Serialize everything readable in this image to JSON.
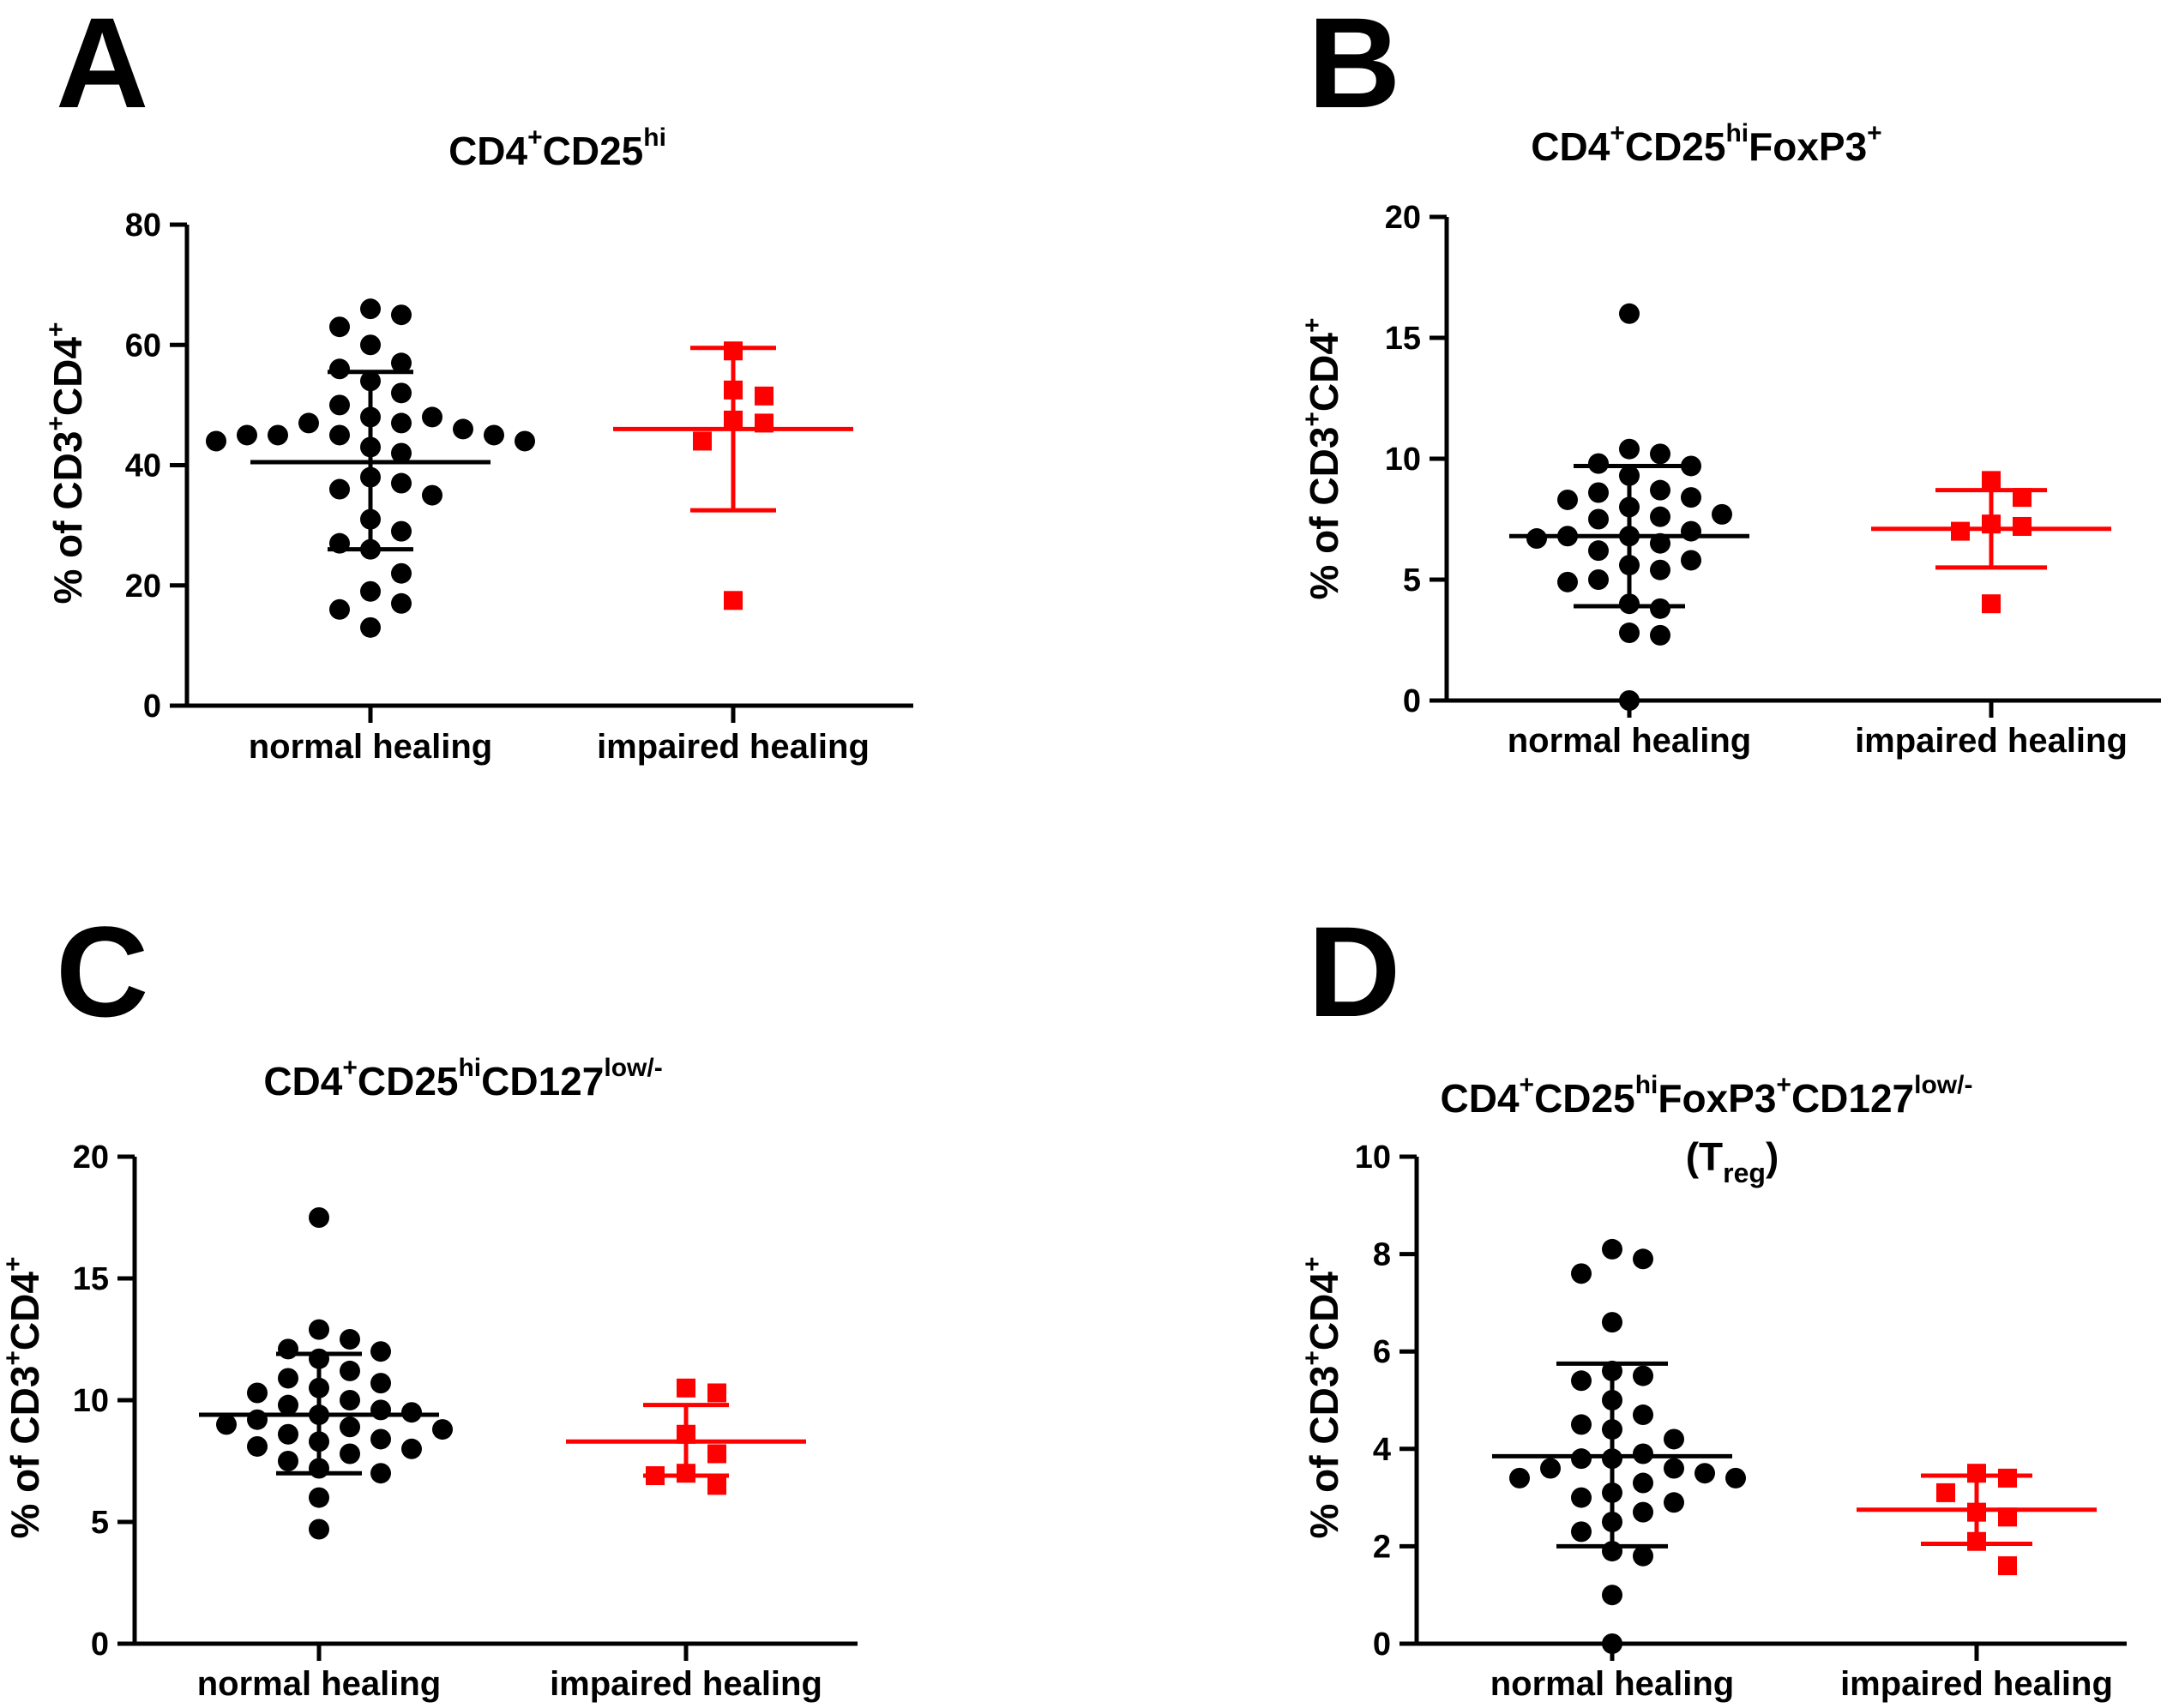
{
  "figure": {
    "colors": {
      "normal": "#000000",
      "impaired": "#ff0000"
    },
    "legend_names": {
      "normal": "normal healing",
      "impaired": "impaired healing"
    }
  },
  "chart_data": [
    {
      "panel": "A",
      "type": "scatter",
      "title": {
        "base": "CD4",
        "sup1": "+",
        "mid": "CD25",
        "sup2": "hi"
      },
      "ylabel": {
        "p1": "% of CD3",
        "s1": "+",
        "p2": "CD4",
        "s2": "+"
      },
      "categories": [
        "normal healing",
        "impaired healing"
      ],
      "ylim": [
        0,
        80
      ],
      "yticks": [
        0,
        20,
        40,
        60,
        80
      ],
      "series": [
        {
          "name": "normal healing",
          "color": "#000000",
          "marker": "circle",
          "mean": 40.5,
          "sd_low": 26,
          "sd_high": 55.5,
          "values": [
            66,
            65,
            63,
            60,
            57,
            56,
            54,
            52,
            50,
            48,
            48,
            47,
            47,
            46,
            45,
            45,
            45,
            45,
            44,
            44,
            43,
            42,
            38,
            37,
            36,
            35,
            31,
            29,
            27,
            26,
            22,
            19,
            17,
            16,
            13
          ]
        },
        {
          "name": "impaired healing",
          "color": "#ff0000",
          "marker": "square",
          "mean": 46,
          "sd_low": 32.5,
          "sd_high": 59.5,
          "values": [
            59,
            52.5,
            51.5,
            47.5,
            47,
            44,
            17.5
          ]
        }
      ]
    },
    {
      "panel": "B",
      "type": "scatter",
      "title": {
        "base": "CD4",
        "sup1": "+",
        "mid": "CD25",
        "sup2": "hi",
        "tail": "FoxP3",
        "sup3": "+"
      },
      "ylabel": {
        "p1": "% of CD3",
        "s1": "+",
        "p2": "CD4",
        "s2": "+"
      },
      "categories": [
        "normal healing",
        "impaired healing"
      ],
      "ylim": [
        0,
        20
      ],
      "yticks": [
        0,
        5,
        10,
        15,
        20
      ],
      "series": [
        {
          "name": "normal healing",
          "color": "#000000",
          "marker": "circle",
          "mean": 6.8,
          "sd_low": 3.9,
          "sd_high": 9.7,
          "values": [
            16,
            10.4,
            10.2,
            9.8,
            9.7,
            9.3,
            8.7,
            8.6,
            8.4,
            8.3,
            8.0,
            7.7,
            7.6,
            7.5,
            7.0,
            6.8,
            6.8,
            6.7,
            6.5,
            6.2,
            5.8,
            5.6,
            5.4,
            5.0,
            4.9,
            4.0,
            3.8,
            2.8,
            2.7,
            0
          ]
        },
        {
          "name": "impaired healing",
          "color": "#ff0000",
          "marker": "square",
          "mean": 7.1,
          "sd_low": 5.5,
          "sd_high": 8.7,
          "values": [
            9.1,
            8.4,
            7.3,
            7.2,
            7.0,
            4.0
          ]
        }
      ]
    },
    {
      "panel": "C",
      "type": "scatter",
      "title": {
        "base": "CD4",
        "sup1": "+",
        "mid": "CD25",
        "sup2": "hi",
        "tail": "CD127",
        "sup3": "low/-"
      },
      "ylabel": {
        "p1": "% of CD3",
        "s1": "+",
        "p2": "CD4",
        "s2": "+"
      },
      "categories": [
        "normal healing",
        "impaired healing"
      ],
      "ylim": [
        0,
        20
      ],
      "yticks": [
        0,
        5,
        10,
        15,
        20
      ],
      "series": [
        {
          "name": "normal healing",
          "color": "#000000",
          "marker": "circle",
          "mean": 9.4,
          "sd_low": 7.0,
          "sd_high": 11.9,
          "values": [
            17.5,
            12.9,
            12.5,
            12.1,
            12.0,
            11.7,
            11.2,
            10.9,
            10.7,
            10.5,
            10.3,
            10.0,
            9.8,
            9.6,
            9.5,
            9.4,
            9.2,
            9.0,
            8.9,
            8.8,
            8.6,
            8.4,
            8.3,
            8.1,
            8.0,
            7.8,
            7.5,
            7.2,
            7.0,
            6.0,
            4.7
          ]
        },
        {
          "name": "impaired healing",
          "color": "#ff0000",
          "marker": "square",
          "mean": 8.3,
          "sd_low": 6.9,
          "sd_high": 9.8,
          "values": [
            10.5,
            10.3,
            8.6,
            7.8,
            7.0,
            6.9,
            6.5
          ]
        }
      ]
    },
    {
      "panel": "D",
      "type": "scatter",
      "title": {
        "base": "CD4",
        "sup1": "+",
        "mid": "CD25",
        "sup2": "hi",
        "tail": "FoxP3",
        "sup3": "+",
        "tail2": "CD127",
        "sup4": "low/-",
        "line2a": "(T",
        "line2sub": "reg",
        "line2b": ")"
      },
      "ylabel": {
        "p1": "% of CD3",
        "s1": "+",
        "p2": "CD4",
        "s2": "+"
      },
      "categories": [
        "normal healing",
        "impaired healing"
      ],
      "ylim": [
        0,
        10
      ],
      "yticks": [
        0,
        2,
        4,
        6,
        8,
        10
      ],
      "series": [
        {
          "name": "normal healing",
          "color": "#000000",
          "marker": "circle",
          "mean": 3.85,
          "sd_low": 2.0,
          "sd_high": 5.75,
          "values": [
            8.1,
            7.9,
            7.6,
            6.6,
            5.6,
            5.5,
            5.4,
            5.0,
            4.7,
            4.5,
            4.4,
            4.2,
            3.9,
            3.8,
            3.8,
            3.6,
            3.6,
            3.5,
            3.4,
            3.4,
            3.3,
            3.1,
            3.0,
            2.9,
            2.7,
            2.5,
            2.3,
            1.9,
            1.8,
            1.0,
            0
          ]
        },
        {
          "name": "impaired healing",
          "color": "#ff0000",
          "marker": "square",
          "mean": 2.75,
          "sd_low": 2.05,
          "sd_high": 3.45,
          "values": [
            3.5,
            3.4,
            3.1,
            2.7,
            2.6,
            2.1,
            1.6
          ]
        }
      ]
    }
  ]
}
